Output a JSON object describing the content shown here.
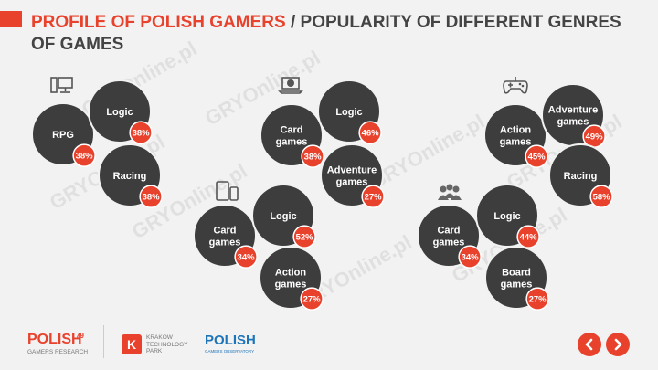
{
  "title": {
    "highlight": "PROFILE OF POLISH GAMERS",
    "rest": " / POPULARITY OF DIFFERENT GENRES OF GAMES"
  },
  "colors": {
    "accent": "#e8412c",
    "bubble": "#3d3d3d",
    "text": "#444444"
  },
  "chart_data": {
    "type": "bubble-groups",
    "groups": [
      {
        "icon": "desktop-computer-icon",
        "genres": [
          {
            "name": "RPG",
            "value": "38%"
          },
          {
            "name": "Logic",
            "value": "38%"
          },
          {
            "name": "Racing",
            "value": "38%"
          }
        ]
      },
      {
        "icon": "laptop-icon",
        "genres": [
          {
            "name": "Card games",
            "value": "38%"
          },
          {
            "name": "Logic",
            "value": "46%"
          },
          {
            "name": "Adventure games",
            "value": "27%"
          }
        ]
      },
      {
        "icon": "gamepad-icon",
        "genres": [
          {
            "name": "Action games",
            "value": "45%"
          },
          {
            "name": "Adventure games",
            "value": "49%"
          },
          {
            "name": "Racing",
            "value": "58%"
          }
        ]
      },
      {
        "icon": "tablet-phone-icon",
        "genres": [
          {
            "name": "Card games",
            "value": "34%"
          },
          {
            "name": "Logic",
            "value": "52%"
          },
          {
            "name": "Action games",
            "value": "27%"
          }
        ]
      },
      {
        "icon": "people-icon",
        "genres": [
          {
            "name": "Card games",
            "value": "34%"
          },
          {
            "name": "Logic",
            "value": "44%"
          },
          {
            "name": "Board games",
            "value": "27%"
          }
        ]
      }
    ]
  },
  "watermark": "GRYOnline.pl",
  "footer": {
    "polish79_main": "POLISH",
    "polish79_sup": "79",
    "polish79_sub": "GAMERS RESEARCH",
    "ktp_mark": "K",
    "ktp_text": "KRAKOW TECHNOLOGY PARK",
    "pgo_main": "POLISH",
    "pgo_sub": "GAMERS OBSERVATORY"
  }
}
